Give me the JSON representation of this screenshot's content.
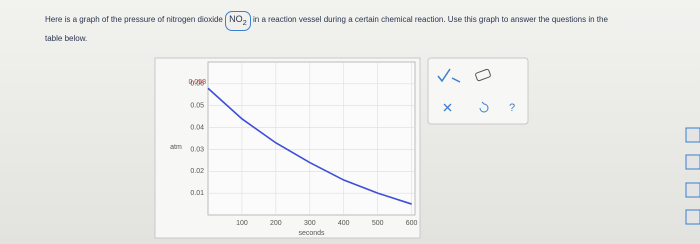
{
  "intro": {
    "before": "Here is a graph of the pressure of nitrogen dioxide",
    "formula": "NO",
    "subscript": "2",
    "after": "in a reaction vessel during a certain chemical reaction. Use this graph to answer the questions in the",
    "line2": "table below."
  },
  "chart_data": {
    "type": "line",
    "ylabel": "atm",
    "xlabel": "seconds",
    "x": [
      0,
      100,
      200,
      300,
      400,
      500,
      600
    ],
    "series": [
      {
        "color": "#3b4fd8",
        "values": [
          0.058,
          0.044,
          0.033,
          0.024,
          0.016,
          0.01,
          0.005
        ]
      }
    ],
    "annotation": "0.058",
    "xlim": [
      0,
      610
    ],
    "xticks": [
      100,
      200,
      300,
      400,
      500,
      600
    ],
    "ylim": [
      0,
      0.07
    ],
    "yticks": [
      0.01,
      0.02,
      0.03,
      0.04,
      0.05,
      0.06
    ],
    "grid": true
  },
  "toolbar": {
    "help": "?"
  }
}
